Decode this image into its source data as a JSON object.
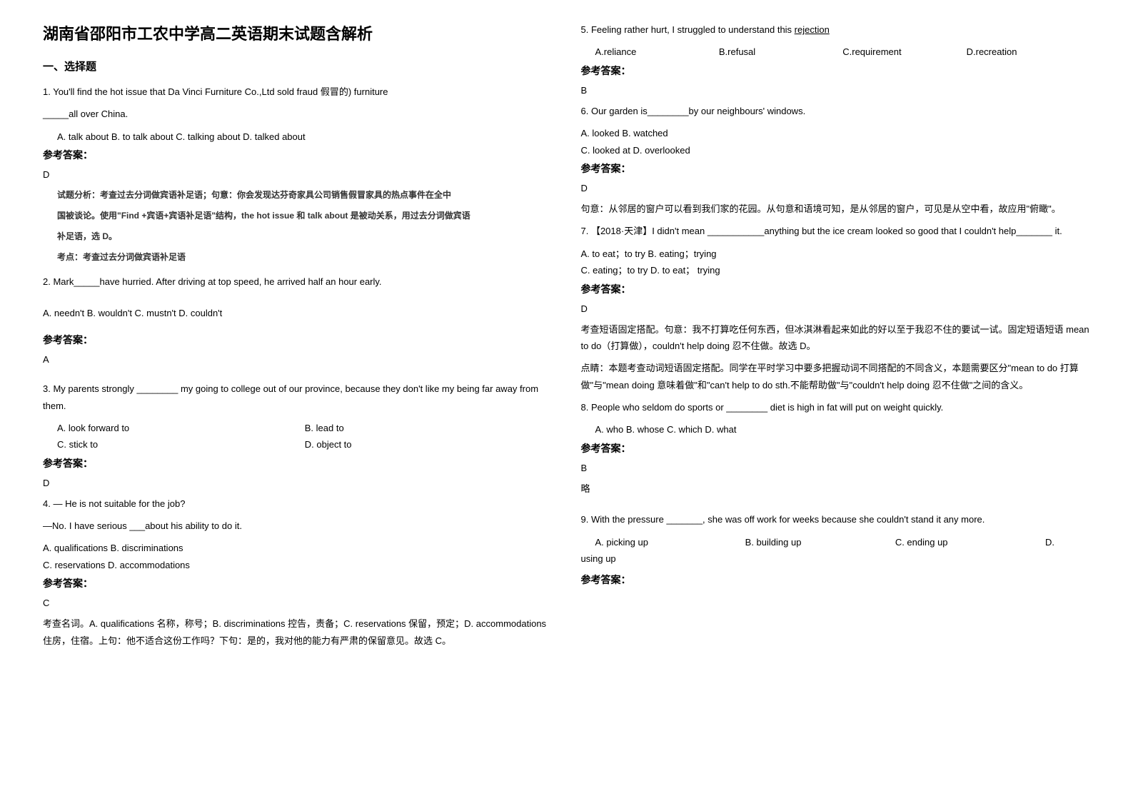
{
  "title": "湖南省邵阳市工农中学高二英语期末试题含解析",
  "section1": "一、选择题",
  "q1": {
    "text1": "1. You'll find the hot issue that Da Vinci Furniture Co.,Ltd sold fraud 假冒的) furniture",
    "text2": "_____all over China.",
    "options": "A.   talk about         B. to talk about   C. talking about D. talked about",
    "answerLabel": "参考答案：",
    "answer": "D",
    "analysis1": "试题分析：考查过去分词做宾语补足语；句意：你会发现达芬奇家具公司销售假冒家具的热点事件在全中",
    "analysis2": "国被谈论。使用\"Find +宾语+宾语补足语\"结构，the hot issue 和 talk about 是被动关系，用过去分词做宾语",
    "analysis3": "补足语，选 D。",
    "analysis4": "考点：考查过去分词做宾语补足语"
  },
  "q2": {
    "text1": "2. Mark_____have hurried. After driving at top speed, he arrived half an hour early.",
    "options": "A. needn't        B. wouldn't        C. mustn't        D. couldn't",
    "answerLabel": "参考答案：",
    "answer": "A"
  },
  "q3": {
    "text1": "3. My parents strongly ________ my going to college out of our province, because they don't like my being far away from them.",
    "optA": "A. look forward to",
    "optB": "B. lead to",
    "optC": "C. stick to",
    "optD": "D. object to",
    "answerLabel": "参考答案：",
    "answer": "D"
  },
  "q4": {
    "text1": "4. — He is not suitable for the job?",
    "text2": "—No. I have serious ___about his ability to do it.",
    "optA": "A. qualifications    B. discriminations",
    "optC": "C. reservations     D. accommodations",
    "answerLabel": "参考答案：",
    "answer": "C",
    "analysis": "考查名词。A. qualifications 名称，称号；B. discriminations 控告，责备；C. reservations 保留，预定；D. accommodations 住房，住宿。上句：他不适合这份工作吗？下句：是的，我对他的能力有严肃的保留意见。故选 C。"
  },
  "q5": {
    "text1": "5. Feeling rather hurt, I struggled to understand this ",
    "underlined": "rejection",
    "optA": "A.reliance",
    "optB": "B.refusal",
    "optC": "C.requirement",
    "optD": "D.recreation",
    "answerLabel": "参考答案：",
    "answer": "B"
  },
  "q6": {
    "text1": "6. Our garden is________by our neighbours' windows.",
    "optA": "A. looked       B. watched",
    "optC": "C. looked at      D. overlooked",
    "answerLabel": "参考答案：",
    "answer": "D",
    "analysis": "句意：从邻居的窗户可以看到我们家的花园。从句意和语境可知，是从邻居的窗户，可见是从空中看，故应用\"俯瞰\"。"
  },
  "q7": {
    "text1": "7. 【2018·天津】I didn't mean ___________anything but the ice cream looked so good that I couldn't help_______ it.",
    "optA": "A. to eat；to try    B. eating；trying",
    "optC": "C. eating；to try    D. to eat； trying",
    "answerLabel": "参考答案：",
    "answer": "D",
    "analysis": "考查短语固定搭配。句意：我不打算吃任何东西，但冰淇淋看起来如此的好以至于我忍不住的要试一试。固定短语短语 mean to do（打算做），couldn't help doing 忍不住做。故选 D。",
    "analysis2": "点睛：本题考查动词短语固定搭配。同学在平时学习中要多把握动词不同搭配的不同含义，本题需要区分\"mean to do 打算做\"与\"mean doing 意味着做\"和\"can't help to do sth.不能帮助做\"与\"couldn't help doing 忍不住做\"之间的含义。"
  },
  "q8": {
    "text1": "8. People who seldom do sports or ________ diet is high in fat will put on weight quickly.",
    "options": "A. who    B. whose    C. which    D. what",
    "answerLabel": "参考答案：",
    "answer": "B",
    "analysis": "略"
  },
  "q9": {
    "text1": "9. With the pressure _______, she was off work for weeks because she couldn't stand it any more.",
    "optA": "A. picking up",
    "optB": "B. building up",
    "optC": "C. ending up",
    "optD": "D.",
    "text2": "using up",
    "answerLabel": "参考答案："
  }
}
